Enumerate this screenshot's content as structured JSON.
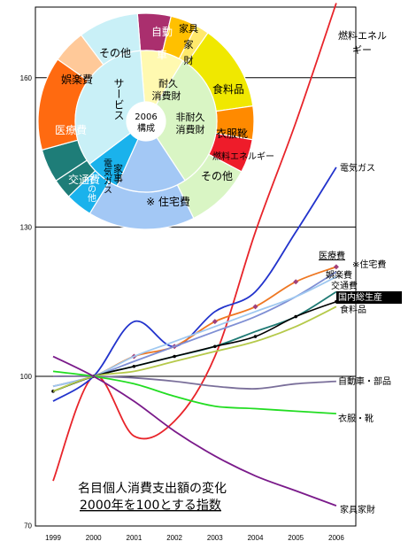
{
  "chart_data": {
    "type": "line",
    "title": "名目個人消費支出額の変化",
    "subtitle": "2000年を100とする指数",
    "x": [
      "1999",
      "2000",
      "2001",
      "2002",
      "2003",
      "2004",
      "2005",
      "2006"
    ],
    "y_ticks": [
      70,
      100,
      130,
      160
    ],
    "ylim": [
      70,
      175
    ],
    "grid": "horizontal at 100,130,160",
    "series": [
      {
        "name": "燃料エネルギー",
        "color": "#e8242a",
        "values": [
          79,
          100,
          88,
          91,
          104,
          129,
          151,
          175
        ]
      },
      {
        "name": "電気ガス",
        "color": "#2233cc",
        "values": [
          95,
          100,
          111,
          106,
          113,
          117,
          129,
          142
        ]
      },
      {
        "name": "医療費",
        "color": "#ee7722",
        "values": [
          98,
          100,
          104,
          106,
          111,
          114,
          119,
          122
        ]
      },
      {
        "name": "※住宅費",
        "color": "#7f8fd4",
        "values": [
          98,
          100,
          103,
          106,
          109,
          112,
          116,
          121
        ]
      },
      {
        "name": "娯楽費",
        "color": "#9fc8f0",
        "values": [
          98,
          100,
          104,
          107,
          110,
          113,
          116,
          120
        ]
      },
      {
        "name": "交通費",
        "color": "#1f7a74",
        "values": [
          97,
          100,
          102,
          104,
          106,
          109,
          112,
          117
        ]
      },
      {
        "name": "国内総生産",
        "color": "#000000",
        "values": [
          97,
          100,
          102,
          104,
          106,
          108,
          112,
          115
        ]
      },
      {
        "name": "食料品",
        "color": "#b5c94a",
        "values": [
          97,
          100,
          101,
          103,
          105,
          107,
          110,
          114
        ]
      },
      {
        "name": "自動車・部品",
        "color": "#7a6f9a",
        "values": [
          100,
          100,
          99.7,
          99,
          98,
          97.5,
          98.5,
          99
        ]
      },
      {
        "name": "衣服・靴",
        "color": "#22dd22",
        "values": [
          101,
          100,
          98.5,
          96,
          94,
          93.5,
          93,
          92.5
        ]
      },
      {
        "name": "家具家財",
        "color": "#7a1a8a",
        "values": [
          104,
          100,
          95,
          89,
          84,
          80,
          77,
          74
        ]
      }
    ],
    "pie": {
      "title": "2006構成",
      "inner": [
        {
          "label": "耐久消費財",
          "color": "#fff9b0",
          "value": 10
        },
        {
          "label": "非耐久消費財",
          "color": "#d9f5c4",
          "value": 32
        },
        {
          "label": "※ 住宅費",
          "color": "#a3c8f5",
          "value": 16
        },
        {
          "label": "家事",
          "color": "#1ab2ec",
          "value": 8
        },
        {
          "label": "サービス",
          "color": "#c9f0f7",
          "value": 34
        }
      ],
      "outer": [
        {
          "label": "自動車",
          "color": "#aa2f6e",
          "value": 5
        },
        {
          "label": "家具家財",
          "color": "#ffc000",
          "value": 4
        },
        {
          "label": "",
          "color": "#ffe96c",
          "value": 2
        },
        {
          "label": "食料品",
          "color": "#f0e800",
          "value": 13
        },
        {
          "label": "衣服靴",
          "color": "#ff8a00",
          "value": 5
        },
        {
          "label": "燃料エネルギー",
          "color": "#ee1c2a",
          "value": 5
        },
        {
          "label": "その他",
          "color": "#d9f5c4",
          "value": 10
        },
        {
          "label": "※ 住宅費",
          "color": "#a3c8f5",
          "value": 16
        },
        {
          "label": "電気ガス",
          "color": "#1ab2ec",
          "value": 4
        },
        {
          "label": "その他",
          "color": "#1e7d78",
          "value": 3
        },
        {
          "label": "交通費",
          "color": "#1e7d78",
          "value": 5
        },
        {
          "label": "医療費",
          "color": "#ff6a10",
          "value": 14
        },
        {
          "label": "娯楽費",
          "color": "#ffc999",
          "value": 5
        },
        {
          "label": "その他",
          "color": "#c9f0f7",
          "value": 9
        }
      ]
    }
  }
}
